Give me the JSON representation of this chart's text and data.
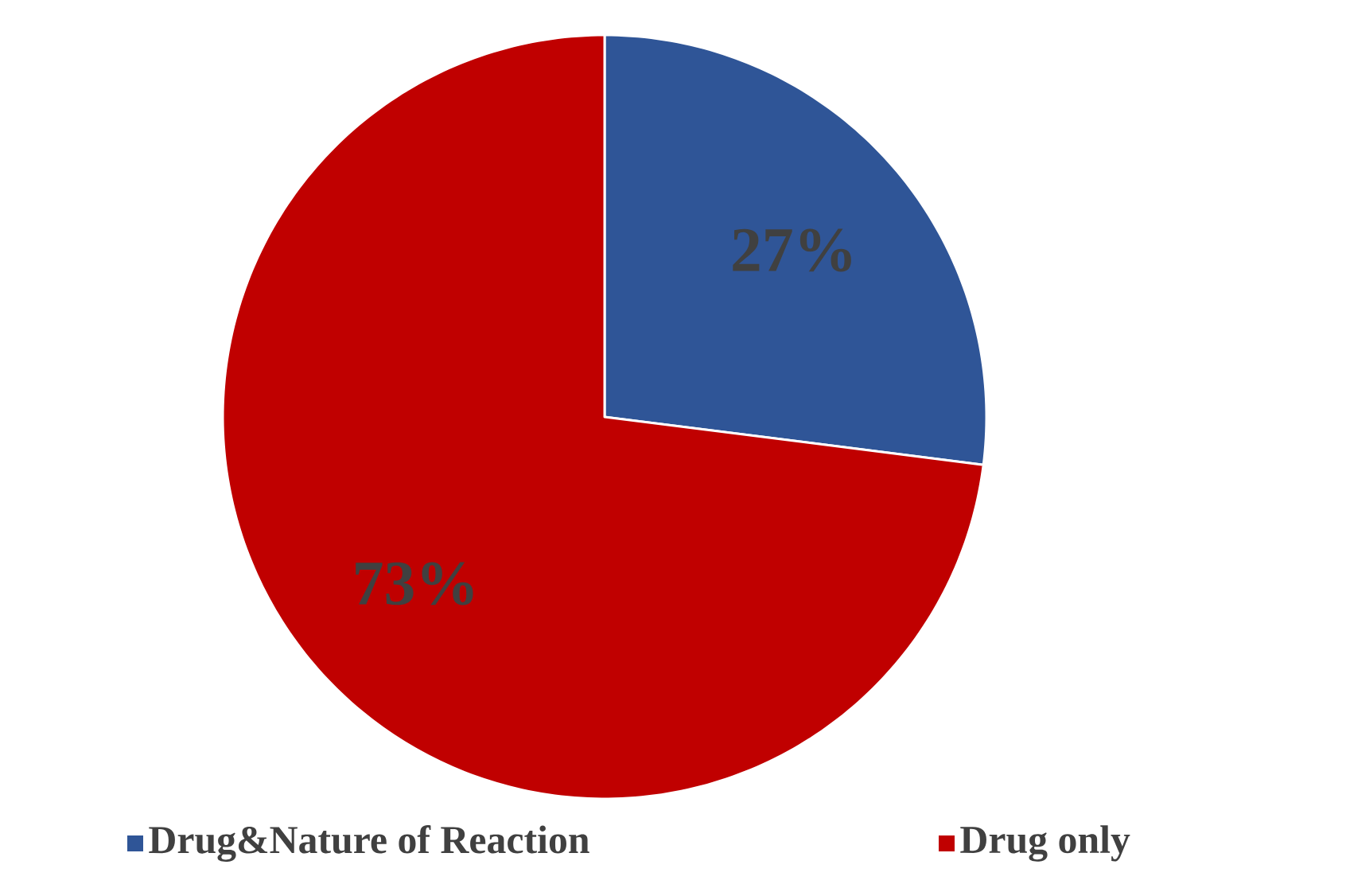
{
  "chart_data": {
    "type": "pie",
    "categories": [
      "Drug&Nature of Reaction",
      "Drug only"
    ],
    "values": [
      27,
      73
    ],
    "colors": [
      "#2f5597",
      "#c00000"
    ],
    "value_labels": [
      "27%",
      "73%"
    ],
    "legend": "bottom"
  }
}
